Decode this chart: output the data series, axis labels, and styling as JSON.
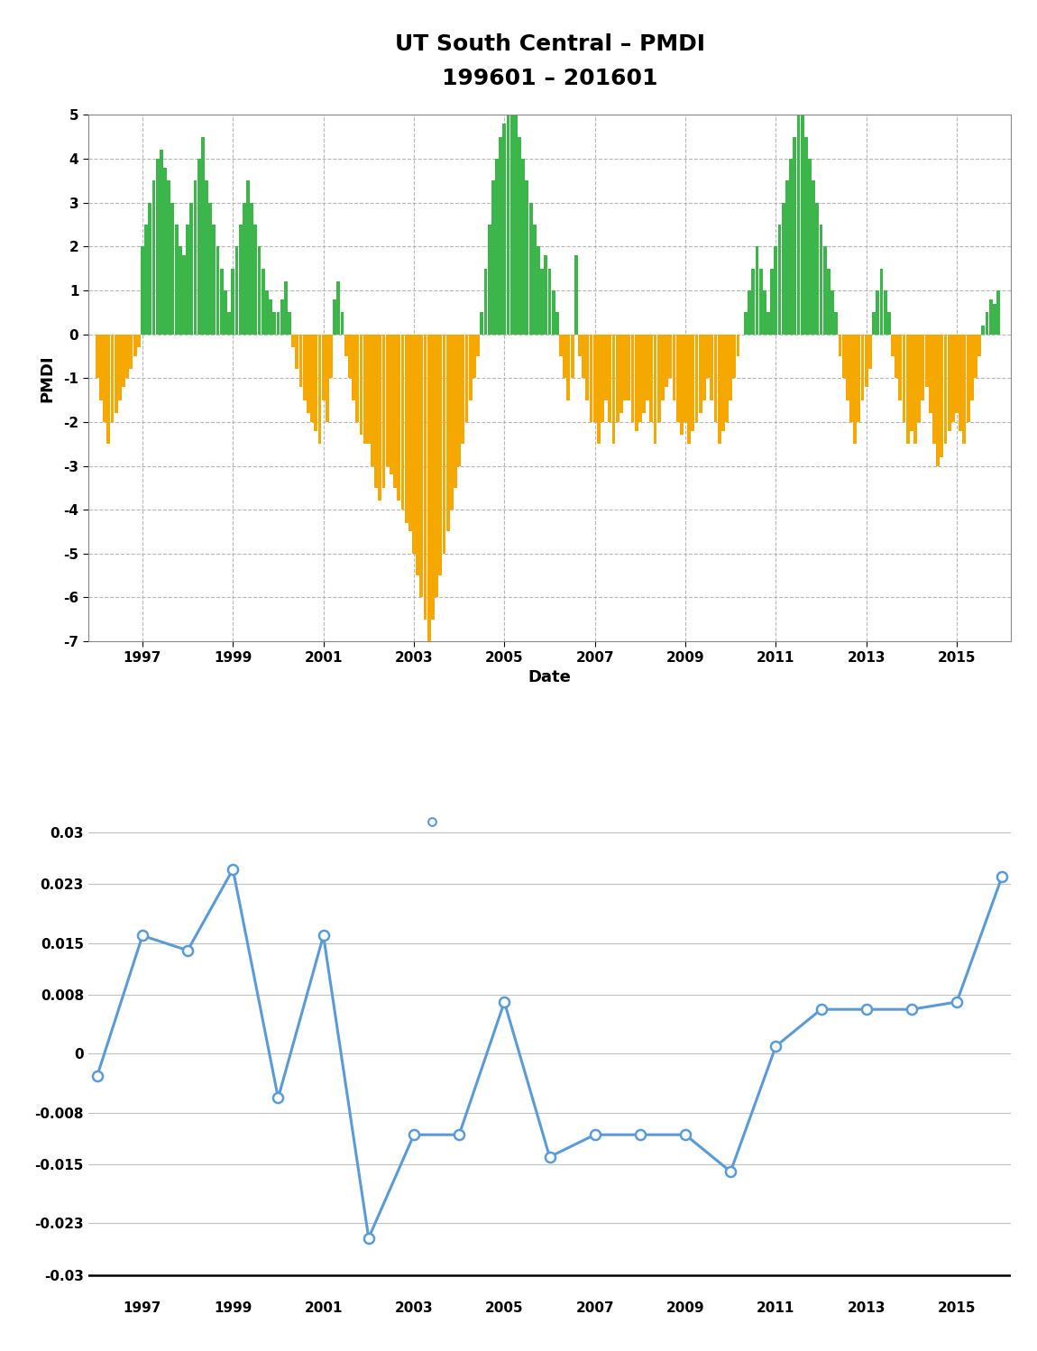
{
  "title_line1": "UT South Central – PMDI",
  "title_line2": "199601 – 201601",
  "bar_xlabel": "Date",
  "bar_ylabel": "PMDI",
  "bar_ylim": [
    -7,
    5
  ],
  "bar_yticks": [
    -7,
    -6,
    -5,
    -4,
    -3,
    -2,
    -1,
    0,
    1,
    2,
    3,
    4,
    5
  ],
  "bar_ytick_labels": [
    "-7",
    "-6",
    "-5",
    "-4",
    "-3",
    "-2",
    "-1",
    "0",
    "1",
    "2",
    "3",
    "4",
    "5"
  ],
  "green_color": "#3cb54a",
  "gold_color": "#f5a800",
  "background_color": "#ffffff",
  "grid_color": "#b0b0b0",
  "line_color": "#5b9bd5",
  "line_yticks": [
    -0.03,
    -0.023,
    -0.015,
    -0.008,
    0,
    0.008,
    0.015,
    0.023,
    0.03
  ],
  "line_ytick_labels": [
    "-0.03",
    "-0.023",
    "-0.015",
    "-0.008",
    "0",
    "0.008",
    "0.015",
    "0.023",
    "0.03"
  ],
  "line_ylim": [
    -0.033,
    0.035
  ],
  "line_years": [
    1996,
    1997,
    1998,
    1999,
    2000,
    2001,
    2002,
    2003,
    2004,
    2005,
    2006,
    2007,
    2008,
    2009,
    2010,
    2011,
    2012,
    2013,
    2014,
    2015,
    2016
  ],
  "line_values": [
    -0.003,
    0.016,
    0.014,
    0.025,
    -0.006,
    0.016,
    -0.025,
    -0.011,
    -0.011,
    0.007,
    -0.014,
    -0.011,
    -0.011,
    -0.011,
    -0.016,
    0.001,
    0.006,
    0.006,
    0.006,
    0.007,
    0.024
  ],
  "start_year": 1996,
  "end_year": 2016,
  "xtick_years": [
    1997,
    1999,
    2001,
    2003,
    2005,
    2007,
    2009,
    2011,
    2013,
    2015
  ],
  "pmdi_1996": [
    -1.0,
    -1.5,
    -2.0,
    -2.5,
    -2.0,
    -1.8,
    -1.5,
    -1.2,
    -1.0,
    -0.8,
    -0.5,
    -0.3
  ],
  "pmdi_1997": [
    2.0,
    2.5,
    3.0,
    3.5,
    4.0,
    4.2,
    3.8,
    3.5,
    3.0,
    2.5,
    2.0,
    1.8
  ],
  "pmdi_1998": [
    2.5,
    3.0,
    3.5,
    4.0,
    4.5,
    3.5,
    3.0,
    2.5,
    2.0,
    1.5,
    1.0,
    0.5
  ],
  "pmdi_1999": [
    1.5,
    2.0,
    2.5,
    3.0,
    3.5,
    3.0,
    2.5,
    2.0,
    1.5,
    1.0,
    0.8,
    0.5
  ],
  "pmdi_2000": [
    0.5,
    0.8,
    1.2,
    0.5,
    -0.3,
    -0.8,
    -1.2,
    -1.5,
    -1.8,
    -2.0,
    -2.2,
    -2.5
  ],
  "pmdi_2001": [
    -1.5,
    -2.0,
    -1.0,
    0.8,
    1.2,
    0.5,
    -0.5,
    -1.0,
    -1.5,
    -2.0,
    -2.3,
    -2.5
  ],
  "pmdi_2002": [
    -2.5,
    -3.0,
    -3.5,
    -3.8,
    -3.5,
    -3.0,
    -3.2,
    -3.5,
    -3.8,
    -4.0,
    -4.3,
    -4.5
  ],
  "pmdi_2003": [
    -5.0,
    -5.5,
    -6.0,
    -6.5,
    -7.0,
    -6.5,
    -6.0,
    -5.5,
    -5.0,
    -4.5,
    -4.0,
    -3.5
  ],
  "pmdi_2004": [
    -3.0,
    -2.5,
    -2.0,
    -1.5,
    -1.0,
    -0.5,
    0.5,
    1.5,
    2.5,
    3.5,
    4.0,
    4.5
  ],
  "pmdi_2005": [
    4.8,
    5.0,
    5.3,
    5.0,
    4.5,
    4.0,
    3.5,
    3.0,
    2.5,
    2.0,
    1.5,
    1.8
  ],
  "pmdi_2006": [
    1.5,
    1.0,
    0.5,
    -0.5,
    -1.0,
    -1.5,
    -1.0,
    1.8,
    -0.5,
    -1.0,
    -1.5,
    -2.0
  ],
  "pmdi_2007": [
    -2.0,
    -2.5,
    -2.0,
    -1.5,
    -2.0,
    -2.5,
    -2.0,
    -1.8,
    -1.5,
    -1.5,
    -2.0,
    -2.2
  ],
  "pmdi_2008": [
    -2.0,
    -1.8,
    -1.5,
    -2.0,
    -2.5,
    -2.0,
    -1.5,
    -1.2,
    -1.0,
    -1.5,
    -2.0,
    -2.3
  ],
  "pmdi_2009": [
    -2.0,
    -2.5,
    -2.2,
    -2.0,
    -1.8,
    -1.5,
    -1.0,
    -1.5,
    -2.0,
    -2.5,
    -2.2,
    -2.0
  ],
  "pmdi_2010": [
    -1.5,
    -1.0,
    -0.5,
    0.0,
    0.5,
    1.0,
    1.5,
    2.0,
    1.5,
    1.0,
    0.5,
    1.5
  ],
  "pmdi_2011": [
    2.0,
    2.5,
    3.0,
    3.5,
    4.0,
    4.5,
    5.0,
    5.3,
    4.5,
    4.0,
    3.5,
    3.0
  ],
  "pmdi_2012": [
    2.5,
    2.0,
    1.5,
    1.0,
    0.5,
    -0.5,
    -1.0,
    -1.5,
    -2.0,
    -2.5,
    -2.0,
    -1.5
  ],
  "pmdi_2013": [
    -1.2,
    -0.8,
    0.5,
    1.0,
    1.5,
    1.0,
    0.5,
    -0.5,
    -1.0,
    -1.5,
    -2.0,
    -2.5
  ],
  "pmdi_2014": [
    -2.2,
    -2.5,
    -2.0,
    -1.5,
    -1.2,
    -1.8,
    -2.5,
    -3.0,
    -2.8,
    -2.5,
    -2.2,
    -2.0
  ],
  "pmdi_2015": [
    -1.8,
    -2.2,
    -2.5,
    -2.0,
    -1.5,
    -1.0,
    -0.5,
    0.2,
    0.5,
    0.8,
    0.7,
    1.0
  ]
}
